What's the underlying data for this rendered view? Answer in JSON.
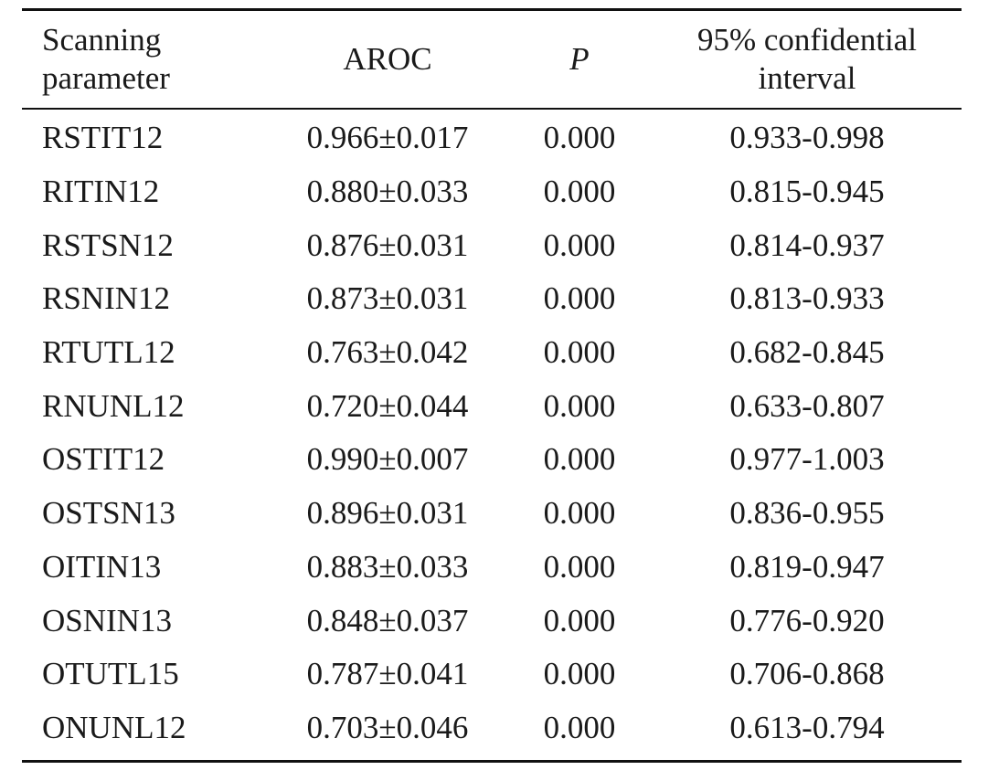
{
  "table": {
    "headers": {
      "col1_line1": "Scanning",
      "col1_line2": "parameter",
      "col2": "AROC",
      "col3": "P",
      "col4_line1": "95% confidential",
      "col4_line2": "interval"
    },
    "rows": [
      {
        "param": "RSTIT12",
        "aroc": "0.966±0.017",
        "p": "0.000",
        "ci": "0.933-0.998"
      },
      {
        "param": "RITIN12",
        "aroc": "0.880±0.033",
        "p": "0.000",
        "ci": "0.815-0.945"
      },
      {
        "param": "RSTSN12",
        "aroc": "0.876±0.031",
        "p": "0.000",
        "ci": "0.814-0.937"
      },
      {
        "param": "RSNIN12",
        "aroc": "0.873±0.031",
        "p": "0.000",
        "ci": "0.813-0.933"
      },
      {
        "param": "RTUTL12",
        "aroc": "0.763±0.042",
        "p": "0.000",
        "ci": "0.682-0.845"
      },
      {
        "param": "RNUNL12",
        "aroc": "0.720±0.044",
        "p": "0.000",
        "ci": "0.633-0.807"
      },
      {
        "param": "OSTIT12",
        "aroc": "0.990±0.007",
        "p": "0.000",
        "ci": "0.977-1.003"
      },
      {
        "param": "OSTSN13",
        "aroc": "0.896±0.031",
        "p": "0.000",
        "ci": "0.836-0.955"
      },
      {
        "param": "OITIN13",
        "aroc": "0.883±0.033",
        "p": "0.000",
        "ci": "0.819-0.947"
      },
      {
        "param": "OSNIN13",
        "aroc": "0.848±0.037",
        "p": "0.000",
        "ci": "0.776-0.920"
      },
      {
        "param": "OTUTL15",
        "aroc": "0.787±0.041",
        "p": "0.000",
        "ci": "0.706-0.868"
      },
      {
        "param": "ONUNL12",
        "aroc": "0.703±0.046",
        "p": "0.000",
        "ci": "0.613-0.794"
      }
    ]
  }
}
